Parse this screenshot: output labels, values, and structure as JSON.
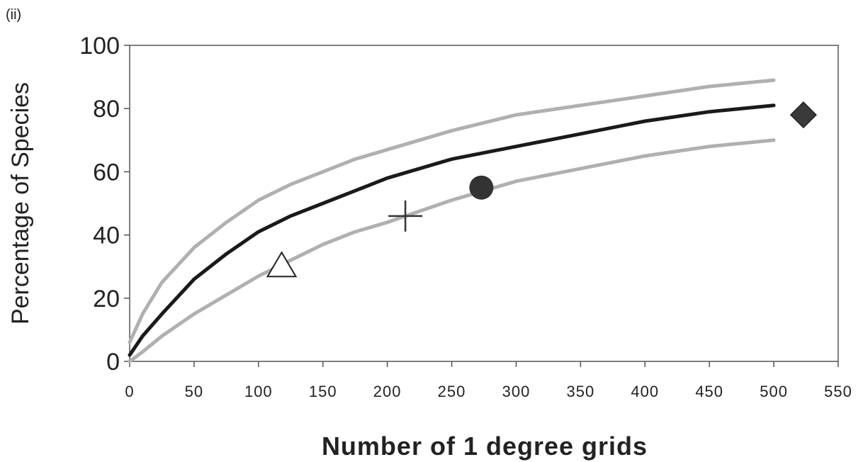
{
  "panel_label": "(ii)",
  "chart_data": {
    "type": "line",
    "xlabel": "Number of 1 degree grids",
    "ylabel": "Percentage of Species",
    "xlim": [
      0,
      550
    ],
    "ylim": [
      0,
      100
    ],
    "x_ticks": [
      0,
      50,
      100,
      150,
      200,
      250,
      300,
      350,
      400,
      450,
      500,
      550
    ],
    "y_ticks": [
      0,
      20,
      40,
      60,
      80,
      100
    ],
    "grid": false,
    "legend": "none",
    "series": [
      {
        "color": "#b0b0b0",
        "x": [
          0,
          10,
          25,
          50,
          75,
          100,
          125,
          150,
          175,
          200,
          250,
          300,
          350,
          400,
          450,
          500
        ],
        "y": [
          6,
          15,
          25,
          36,
          44,
          51,
          56,
          60,
          64,
          67,
          73,
          78,
          81,
          84,
          87,
          89
        ]
      },
      {
        "color": "#1a1a1a",
        "x": [
          0,
          10,
          25,
          50,
          75,
          100,
          125,
          150,
          175,
          200,
          250,
          300,
          350,
          400,
          450,
          500
        ],
        "y": [
          2,
          8,
          15,
          26,
          34,
          41,
          46,
          50,
          54,
          58,
          64,
          68,
          72,
          76,
          79,
          81
        ]
      },
      {
        "color": "#b0b0b0",
        "x": [
          0,
          10,
          25,
          50,
          75,
          100,
          125,
          150,
          175,
          200,
          250,
          300,
          350,
          400,
          450,
          500
        ],
        "y": [
          0,
          3,
          8,
          15,
          21,
          27,
          32,
          37,
          41,
          44,
          51,
          57,
          61,
          65,
          68,
          70
        ]
      }
    ],
    "markers": [
      {
        "shape": "triangle",
        "x": 118,
        "y": 30
      },
      {
        "shape": "cross",
        "x": 214,
        "y": 46
      },
      {
        "shape": "circle",
        "x": 273,
        "y": 55
      },
      {
        "shape": "diamond",
        "x": 523,
        "y": 78
      }
    ]
  }
}
